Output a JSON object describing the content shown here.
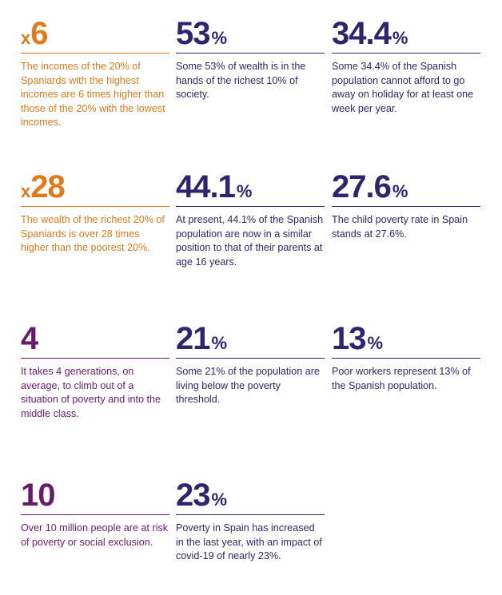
{
  "colors": {
    "orange": "#e07b1a",
    "navy": "#2e2570",
    "purple": "#6a1a6e"
  },
  "stats": [
    {
      "prefix": "x",
      "value": "6",
      "suffix": "",
      "text": "The incomes of the 20% of Spaniards with the highest incomes are 6 times higher than those of the 20% with the lowest incomes."
    },
    {
      "prefix": "",
      "value": "53",
      "suffix": "%",
      "text": "Some 53% of wealth is in the hands of the richest 10% of society."
    },
    {
      "prefix": "",
      "value": "34.4",
      "suffix": "%",
      "text": "Some 34.4% of the Spanish population cannot afford to go away on holiday for at least one week per year."
    },
    {
      "prefix": "x",
      "value": "28",
      "suffix": "",
      "text": "The wealth of the richest 20% of Spaniards is over 28 times higher than the poorest 20%."
    },
    {
      "prefix": "",
      "value": "44.1",
      "suffix": "%",
      "text": "At present, 44.1% of the Spanish population are now in a similar position to that of their parents at age 16 years."
    },
    {
      "prefix": "",
      "value": "27.6",
      "suffix": "%",
      "text": "The child poverty rate in Spain stands at 27.6%."
    },
    {
      "prefix": "",
      "value": "4",
      "suffix": "",
      "text": "It takes 4 generations, on average, to climb out of a situation of poverty and into the middle class."
    },
    {
      "prefix": "",
      "value": "21",
      "suffix": "%",
      "text": "Some 21% of the population are living below the poverty threshold."
    },
    {
      "prefix": "",
      "value": "13",
      "suffix": "%",
      "text": "Poor workers represent 13%  of the Spanish population."
    },
    {
      "prefix": "",
      "value": "10",
      "suffix": "",
      "text": "Over 10 million people are at risk of poverty or social exclusion."
    },
    {
      "prefix": "",
      "value": "23",
      "suffix": "%",
      "text": "Poverty in Spain has increased in the last year, with an impact of covid-19 of nearly 23%."
    }
  ]
}
